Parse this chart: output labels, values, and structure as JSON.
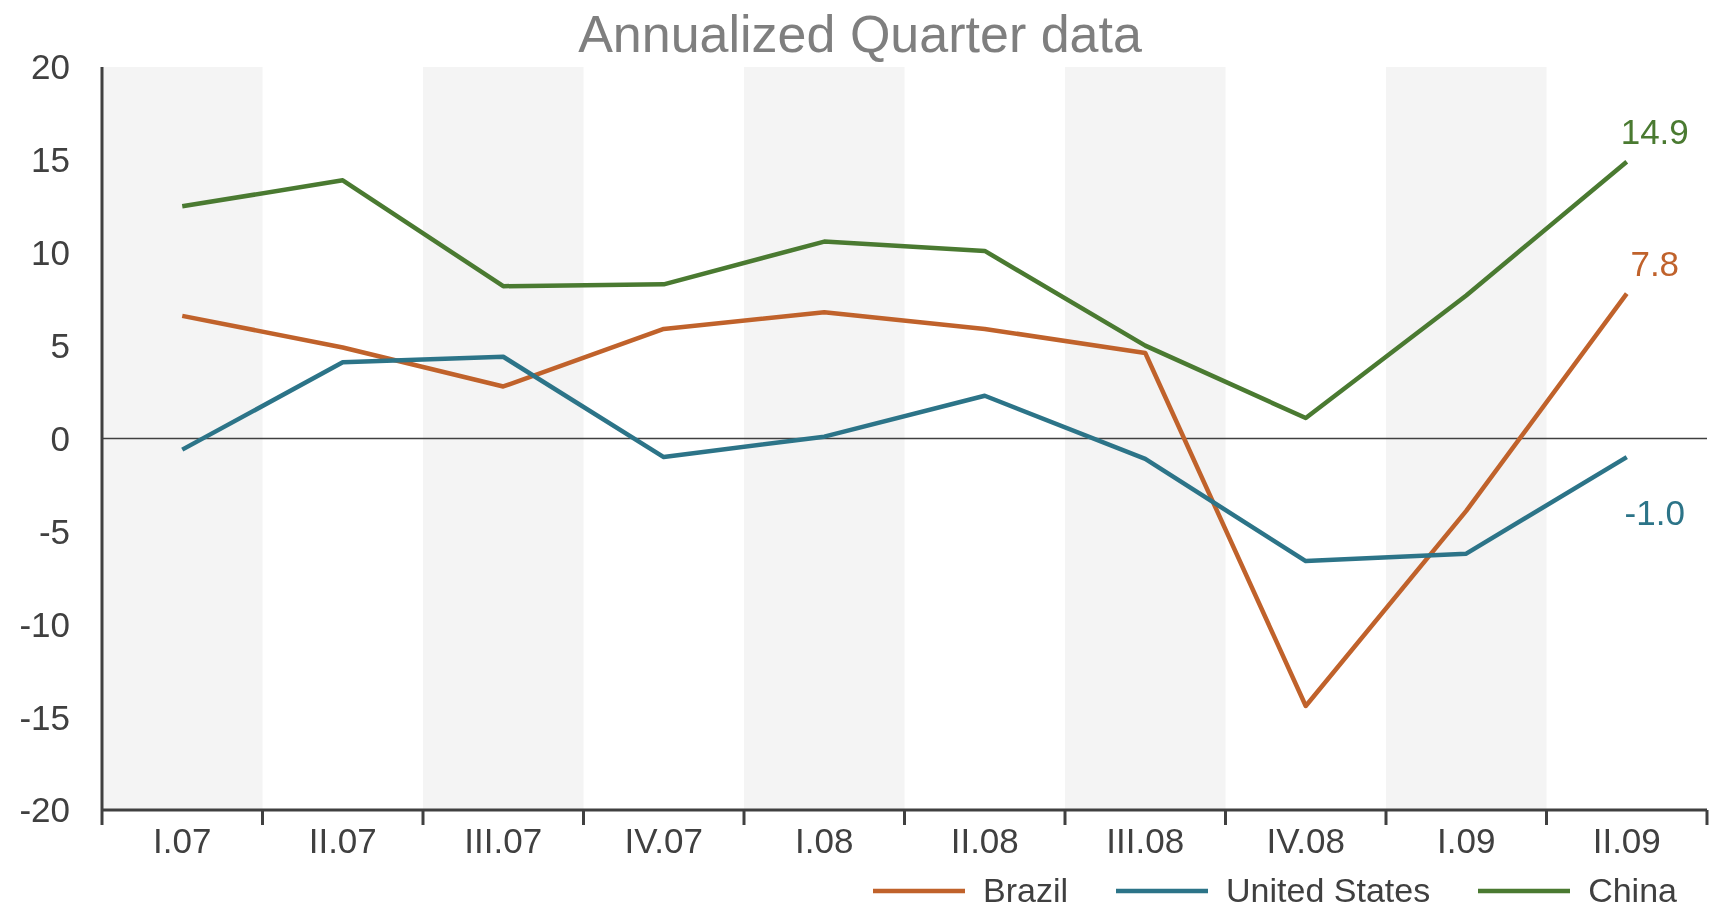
{
  "chart_data": {
    "type": "line",
    "title": "Annualized Quarter data",
    "categories": [
      "I.07",
      "II.07",
      "III.07",
      "IV.07",
      "I.08",
      "II.08",
      "III.08",
      "IV.08",
      "I.09",
      "II.09"
    ],
    "series": [
      {
        "name": "Brazil",
        "color": "#c0622b",
        "values": [
          6.6,
          4.9,
          2.8,
          5.9,
          6.8,
          5.9,
          4.6,
          -14.4,
          -3.9,
          7.8
        ],
        "value_labels": [
          null,
          null,
          null,
          null,
          null,
          null,
          null,
          null,
          null,
          "7.8"
        ]
      },
      {
        "name": "United States",
        "color": "#2c7488",
        "values": [
          -0.6,
          4.1,
          4.4,
          -1.0,
          0.1,
          2.3,
          -1.1,
          -6.6,
          -6.2,
          -1.0
        ],
        "value_labels": [
          null,
          null,
          null,
          null,
          null,
          null,
          null,
          null,
          null,
          "-1.0"
        ]
      },
      {
        "name": "China",
        "color": "#4a7a31",
        "values": [
          12.5,
          13.9,
          8.2,
          8.3,
          10.6,
          10.1,
          5.0,
          1.1,
          7.7,
          14.9
        ],
        "value_labels": [
          null,
          null,
          null,
          null,
          null,
          null,
          null,
          null,
          null,
          "14.9"
        ]
      }
    ],
    "ylim": [
      -20,
      20
    ],
    "yticks": [
      -20,
      -15,
      -10,
      -5,
      0,
      5,
      10,
      15,
      20
    ],
    "ref_lines": [
      {
        "axis": "y",
        "value": 0,
        "color": "#404040"
      }
    ],
    "bands": [
      {
        "axis": "x",
        "from": "I.07",
        "to": "I.07",
        "color": "#f4f4f4"
      },
      {
        "axis": "x",
        "from": "III.07",
        "to": "III.07",
        "color": "#f4f4f4"
      },
      {
        "axis": "x",
        "from": "I.08",
        "to": "I.08",
        "color": "#f4f4f4"
      },
      {
        "axis": "x",
        "from": "III.08",
        "to": "III.08",
        "color": "#f4f4f4"
      },
      {
        "axis": "x",
        "from": "I.09",
        "to": "I.09",
        "color": "#f4f4f4"
      }
    ],
    "legend": "bottom right",
    "marker": "none",
    "line_style": "solid"
  }
}
